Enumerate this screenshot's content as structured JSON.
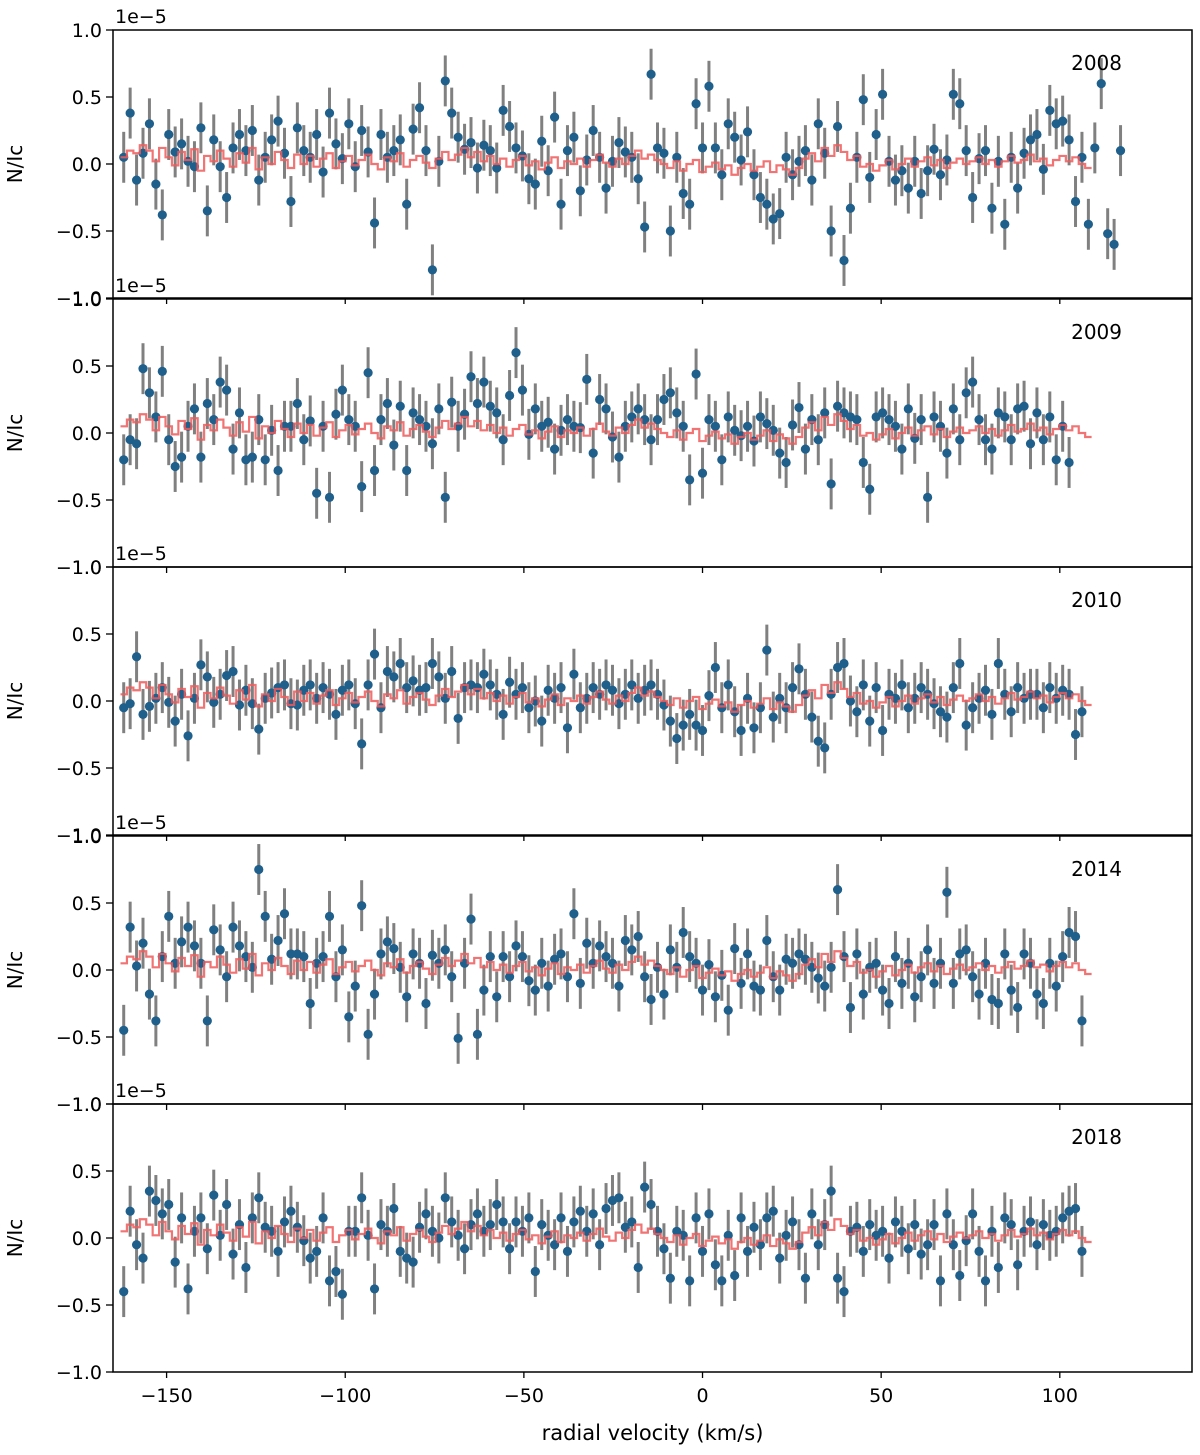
{
  "chart_data": {
    "type": "scatter",
    "layout": "five vertically stacked panels sharing the x axis",
    "xlabel": "radial velocity (km/s)",
    "xlim": [
      -165,
      137
    ],
    "xticks": [
      -150,
      -100,
      -50,
      0,
      50,
      100
    ],
    "xtick_labels": [
      "−150",
      "−100",
      "−50",
      "0",
      "50",
      "100"
    ],
    "ylabel": "N/Ic",
    "ylim": [
      -1.0,
      1.0
    ],
    "yticks": [
      -1.0,
      -0.5,
      0.0,
      0.5,
      1.0
    ],
    "ytick_labels": [
      "−1.0",
      "−0.5",
      "0.0",
      "0.5",
      "1.0"
    ],
    "y_offset_label": "1e−5",
    "colors": {
      "points": "#1f5f8b",
      "errorbars": "#808080",
      "model": "#f05a5a",
      "frame": "#000000"
    },
    "x_start": -162.0,
    "x_step": 1.8,
    "model": [
      0.05,
      0.1,
      0.08,
      0.14,
      0.1,
      0.02,
      0.12,
      0.05,
      -0.01,
      0.09,
      0.03,
      0.11,
      -0.05,
      0.06,
      0.02,
      0.1,
      0.04,
      -0.02,
      0.08,
      0.01,
      0.12,
      -0.04,
      0.05,
      0.0,
      0.09,
      0.03,
      -0.03,
      0.07,
      0.0,
      0.06,
      -0.02,
      0.04,
      0.08,
      -0.03,
      0.02,
      0.06,
      -0.01,
      0.03,
      0.07,
      0.0,
      -0.04,
      0.05,
      0.02,
      0.08,
      -0.02,
      0.03,
      0.06,
      0.01,
      -0.03,
      0.04,
      0.09,
      0.03,
      0.07,
      0.12,
      0.05,
      0.09,
      0.02,
      0.06,
      0.0,
      0.04,
      -0.02,
      0.03,
      0.06,
      -0.01,
      0.02,
      -0.04,
      0.01,
      0.05,
      -0.03,
      0.02,
      0.0,
      0.04,
      -0.02,
      0.03,
      0.07,
      0.01,
      -0.02,
      0.04,
      0.0,
      0.06,
      0.1,
      0.04,
      0.07,
      0.03,
      0.0,
      -0.03,
      0.02,
      -0.05,
      0.0,
      0.03,
      -0.06,
      -0.02,
      0.01,
      -0.04,
      -0.01,
      -0.08,
      -0.03,
      0.0,
      -0.05,
      -0.02,
      0.02,
      -0.06,
      -0.01,
      -0.04,
      -0.08,
      -0.03,
      0.04,
      0.08,
      0.02,
      0.12,
      0.06,
      0.14,
      0.09,
      0.03,
      0.06,
      -0.02,
      0.0,
      -0.05,
      -0.01,
      0.03,
      -0.04,
      0.0,
      0.04,
      -0.02,
      0.02,
      0.05,
      -0.01,
      0.03,
      -0.03,
      0.01,
      0.04,
      0.0,
      0.02,
      0.05,
      0.0,
      0.03,
      -0.02,
      0.02,
      0.06,
      0.01,
      0.03,
      0.07,
      0.02,
      0.04,
      -0.01,
      0.03,
      0.06,
      0.02,
      0.05,
      0.0,
      -0.03
    ],
    "panels": [
      {
        "year": "2008",
        "values": [
          0.05,
          0.38,
          -0.12,
          0.08,
          0.3,
          -0.15,
          -0.38,
          0.22,
          0.09,
          0.15,
          0.02,
          -0.02,
          0.27,
          -0.35,
          0.18,
          -0.02,
          -0.25,
          0.12,
          0.22,
          0.1,
          0.25,
          -0.12,
          0.05,
          0.18,
          0.32,
          0.08,
          -0.28,
          0.27,
          0.1,
          0.05,
          0.22,
          -0.06,
          0.38,
          0.15,
          0.04,
          0.3,
          -0.02,
          0.25,
          0.09,
          -0.44,
          0.22,
          0.05,
          0.1,
          0.18,
          -0.3,
          0.26,
          0.42,
          0.1,
          -0.79,
          0.02,
          0.62,
          0.38,
          0.2,
          0.11,
          0.16,
          -0.03,
          0.14,
          0.1,
          -0.03,
          0.4,
          0.28,
          0.12,
          0.06,
          -0.11,
          -0.15,
          0.17,
          -0.05,
          0.35,
          -0.3,
          0.1,
          0.2,
          -0.2,
          0.03,
          0.25,
          0.05,
          -0.18,
          0.02,
          0.16,
          0.09,
          0.05,
          -0.11,
          -0.47,
          0.67,
          0.12,
          0.08,
          -0.5,
          0.05,
          -0.22,
          -0.3,
          0.45,
          0.12,
          0.58,
          0.12,
          -0.08,
          0.3,
          0.2,
          0.03,
          0.24,
          -0.08,
          -0.25,
          -0.3,
          -0.41,
          -0.37,
          0.05,
          -0.08,
          0.02,
          0.1,
          -0.12,
          0.3,
          0.08,
          -0.5,
          0.28,
          -0.72,
          -0.33,
          0.05,
          0.48,
          -0.1,
          0.22,
          0.52,
          0.02,
          -0.12,
          -0.05,
          -0.18,
          0.02,
          -0.22,
          -0.05,
          0.11,
          -0.08,
          0.03,
          0.52,
          0.45,
          0.1,
          -0.25,
          0.04,
          0.1,
          -0.33,
          0.02,
          -0.45,
          0.05,
          -0.18,
          0.08,
          0.18,
          0.22,
          -0.04,
          0.4,
          0.3,
          0.32,
          0.18,
          -0.28,
          0.05,
          -0.45,
          0.12,
          0.6,
          -0.52,
          -0.6,
          0.1
        ]
      },
      {
        "year": "2009",
        "values": [
          -0.2,
          -0.05,
          -0.08,
          0.48,
          0.3,
          0.12,
          0.46,
          -0.05,
          -0.25,
          -0.18,
          0.05,
          0.18,
          -0.18,
          0.22,
          0.1,
          0.38,
          0.32,
          -0.12,
          0.15,
          -0.2,
          -0.18,
          0.1,
          -0.2,
          0.02,
          -0.28,
          0.05,
          0.05,
          0.22,
          -0.05,
          0.09,
          -0.45,
          0.05,
          -0.48,
          0.14,
          0.32,
          0.1,
          0.05,
          -0.4,
          0.45,
          -0.28,
          0.1,
          0.22,
          -0.09,
          0.2,
          -0.28,
          0.15,
          0.1,
          0.05,
          -0.08,
          0.18,
          -0.48,
          0.23,
          0.05,
          0.14,
          0.42,
          0.22,
          0.38,
          0.2,
          0.15,
          -0.05,
          0.28,
          0.6,
          0.32,
          -0.01,
          0.18,
          0.05,
          0.08,
          -0.12,
          0.02,
          0.1,
          0.05,
          0.04,
          0.4,
          -0.15,
          0.25,
          0.18,
          -0.03,
          -0.18,
          0.05,
          0.12,
          0.18,
          0.1,
          -0.05,
          0.1,
          0.25,
          0.3,
          0.15,
          0.05,
          -0.35,
          0.44,
          -0.3,
          0.1,
          0.05,
          -0.2,
          0.12,
          0.02,
          -0.02,
          0.05,
          -0.06,
          0.12,
          0.07,
          0.02,
          -0.15,
          -0.22,
          0.06,
          0.19,
          -0.12,
          0.1,
          -0.05,
          0.15,
          -0.38,
          0.2,
          0.15,
          0.12,
          0.1,
          -0.22,
          -0.42,
          0.12,
          0.15,
          0.1,
          0.05,
          -0.12,
          0.18,
          -0.04,
          0.1,
          -0.48,
          0.12,
          0.05,
          -0.15,
          0.18,
          -0.05,
          0.3,
          0.38,
          0.1,
          -0.05,
          -0.12,
          0.15,
          0.12,
          -0.05,
          0.18,
          0.2,
          -0.08,
          0.15,
          -0.05,
          0.12,
          -0.2,
          0.05,
          -0.22
        ]
      },
      {
        "year": "2010",
        "values": [
          -0.05,
          -0.02,
          0.33,
          -0.1,
          -0.04,
          0.02,
          0.1,
          -0.01,
          -0.15,
          0.05,
          -0.26,
          0.02,
          0.27,
          0.18,
          -0.01,
          0.05,
          0.19,
          0.22,
          -0.03,
          0.08,
          -0.02,
          -0.21,
          0.02,
          0.06,
          0.1,
          0.12,
          -0.02,
          -0.03,
          0.08,
          0.12,
          0.02,
          0.1,
          0.05,
          -0.1,
          0.08,
          0.12,
          -0.02,
          -0.32,
          0.12,
          0.35,
          -0.05,
          0.22,
          0.18,
          0.28,
          0.1,
          0.15,
          0.08,
          0.1,
          0.28,
          0.18,
          0.02,
          0.22,
          -0.13,
          0.1,
          0.12,
          0.1,
          0.2,
          0.12,
          0.05,
          -0.1,
          0.14,
          0.05,
          0.1,
          -0.05,
          0.0,
          -0.15,
          0.08,
          0.02,
          0.1,
          -0.2,
          0.2,
          -0.05,
          0.02,
          0.1,
          0.05,
          0.12,
          0.08,
          -0.02,
          0.05,
          0.12,
          0.02,
          0.08,
          0.12,
          0.05,
          -0.03,
          -0.15,
          -0.28,
          -0.18,
          -0.1,
          -0.18,
          -0.22,
          0.04,
          0.25,
          -0.05,
          0.12,
          -0.08,
          -0.22,
          0.02,
          -0.2,
          -0.05,
          0.38,
          -0.12,
          0.02,
          -0.05,
          0.1,
          0.24,
          0.05,
          -0.12,
          -0.3,
          -0.35,
          0.05,
          0.25,
          0.28,
          0.0,
          -0.08,
          0.12,
          -0.15,
          0.1,
          -0.22,
          0.05,
          0.02,
          0.12,
          -0.05,
          0.02,
          0.1,
          0.05,
          -0.02,
          -0.08,
          -0.12,
          0.1,
          0.28,
          -0.18,
          -0.05,
          0.02,
          0.08,
          -0.1,
          0.28,
          0.05,
          -0.08,
          0.1,
          0.02,
          0.05,
          0.05,
          -0.05,
          0.1,
          0.02,
          0.08,
          0.05,
          -0.25,
          -0.08
        ]
      },
      {
        "year": "2014",
        "values": [
          -0.45,
          0.32,
          0.03,
          0.2,
          -0.18,
          -0.38,
          0.1,
          0.4,
          0.05,
          0.21,
          0.32,
          0.18,
          0.05,
          -0.38,
          0.3,
          0.15,
          -0.05,
          0.32,
          0.18,
          0.1,
          0.02,
          0.75,
          0.4,
          0.08,
          0.22,
          0.42,
          0.12,
          0.12,
          0.1,
          -0.25,
          0.05,
          0.1,
          0.4,
          -0.05,
          0.15,
          -0.35,
          -0.12,
          0.48,
          -0.48,
          -0.18,
          0.12,
          0.21,
          0.16,
          0.02,
          -0.2,
          0.12,
          0.05,
          -0.25,
          0.11,
          0.05,
          0.15,
          -0.05,
          -0.51,
          0.05,
          0.38,
          -0.48,
          -0.15,
          0.1,
          -0.2,
          0.1,
          -0.05,
          0.18,
          0.1,
          -0.08,
          -0.15,
          0.05,
          -0.12,
          0.08,
          0.12,
          -0.05,
          0.42,
          -0.1,
          0.2,
          0.05,
          0.18,
          0.1,
          0.05,
          -0.12,
          0.22,
          0.15,
          0.25,
          -0.05,
          -0.22,
          0.02,
          -0.18,
          0.15,
          0.02,
          0.28,
          0.1,
          0.05,
          -0.15,
          0.04,
          -0.2,
          -0.04,
          -0.3,
          0.16,
          -0.1,
          0.12,
          -0.12,
          -0.15,
          0.22,
          -0.05,
          -0.15,
          0.08,
          0.05,
          0.12,
          0.08,
          0.02,
          -0.06,
          -0.12,
          0.02,
          0.6,
          0.1,
          -0.28,
          0.12,
          -0.18,
          0.02,
          0.05,
          -0.15,
          -0.25,
          0.1,
          -0.1,
          0.05,
          -0.2,
          -0.05,
          0.15,
          -0.1,
          0.05,
          0.58,
          -0.1,
          0.12,
          0.15,
          -0.05,
          -0.18,
          0.05,
          -0.22,
          -0.25,
          0.12,
          -0.15,
          -0.28,
          0.12,
          0.05,
          -0.18,
          -0.25,
          0.05,
          -0.12,
          0.1,
          0.28,
          0.25,
          -0.38
        ]
      },
      {
        "year": "2018",
        "values": [
          -0.4,
          0.2,
          -0.05,
          -0.15,
          0.35,
          0.28,
          0.18,
          0.25,
          -0.18,
          0.15,
          -0.38,
          0.05,
          0.15,
          -0.08,
          0.32,
          0.02,
          0.25,
          -0.12,
          0.1,
          -0.22,
          0.15,
          0.3,
          0.08,
          0.05,
          -0.1,
          0.12,
          0.2,
          0.08,
          -0.02,
          -0.15,
          -0.1,
          0.15,
          -0.32,
          -0.25,
          -0.42,
          0.05,
          0.05,
          0.3,
          0.02,
          -0.38,
          0.1,
          0.05,
          0.22,
          -0.1,
          -0.15,
          -0.18,
          0.08,
          0.18,
          0.05,
          0.0,
          0.3,
          0.12,
          0.02,
          -0.08,
          0.1,
          0.18,
          0.05,
          0.1,
          0.25,
          0.12,
          -0.08,
          0.12,
          0.05,
          0.15,
          -0.25,
          0.1,
          0.02,
          -0.05,
          0.15,
          -0.1,
          0.12,
          0.2,
          0.05,
          0.18,
          -0.05,
          0.22,
          0.28,
          0.3,
          0.08,
          0.12,
          -0.22,
          0.38,
          0.25,
          0.05,
          -0.08,
          -0.3,
          0.05,
          0.02,
          -0.32,
          0.15,
          -0.1,
          0.18,
          -0.2,
          -0.32,
          0.02,
          -0.28,
          0.15,
          -0.1,
          0.08,
          -0.05,
          0.15,
          0.2,
          -0.15,
          0.02,
          0.12,
          -0.05,
          -0.3,
          0.18,
          -0.05,
          0.1,
          0.35,
          -0.3,
          -0.4,
          0.05,
          0.08,
          -0.1,
          0.1,
          0.02,
          0.05,
          -0.15,
          0.12,
          0.05,
          -0.08,
          0.1,
          -0.12,
          -0.05,
          0.1,
          -0.32,
          0.18,
          -0.05,
          -0.28,
          -0.02,
          0.18,
          -0.1,
          -0.32,
          0.05,
          -0.22,
          0.15,
          0.1,
          -0.2,
          0.05,
          0.12,
          -0.05,
          0.1,
          0.02,
          0.05,
          0.15,
          0.2,
          0.22,
          -0.1
        ]
      }
    ]
  }
}
